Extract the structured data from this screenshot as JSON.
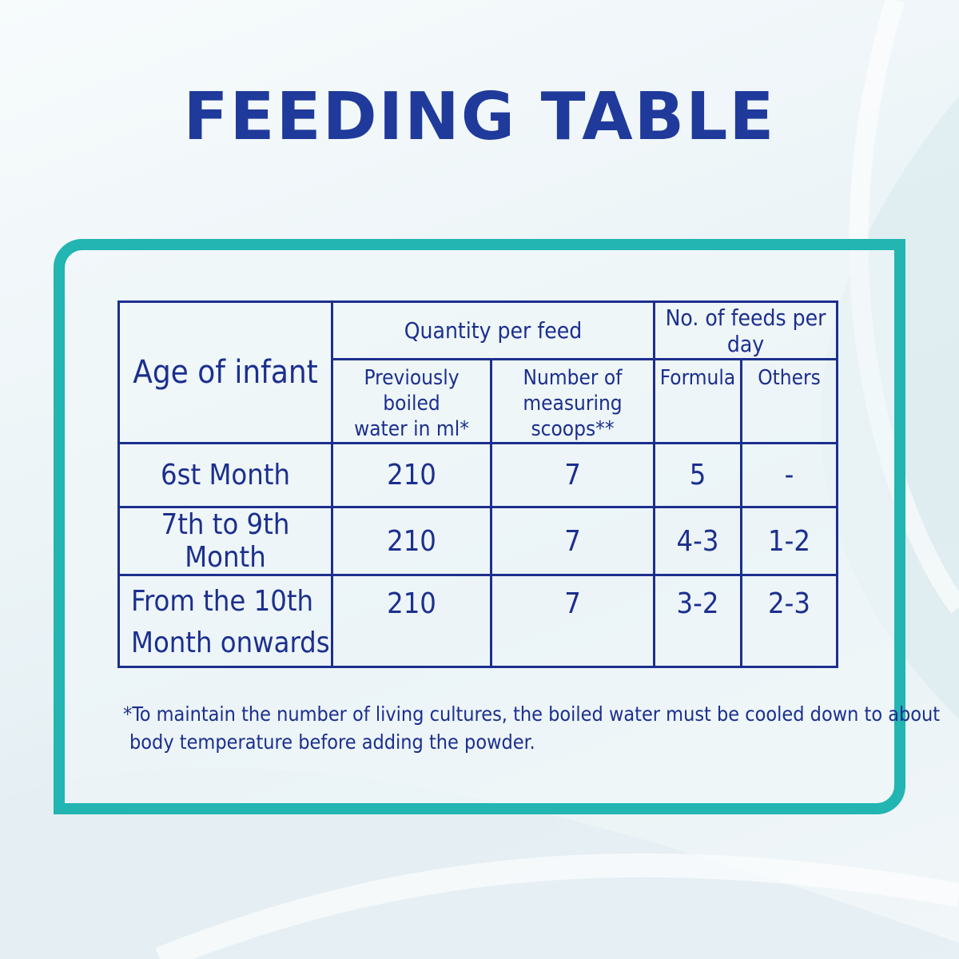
{
  "title": "FEEDING TABLE",
  "colors": {
    "title": "#1f3a9a",
    "table_text": "#1c2f8e",
    "frame_border": "#22b5b2"
  },
  "table": {
    "age_header": "Age of infant",
    "quantity_header": "Quantity per feed",
    "feeds_header": "No. of feeds per day",
    "water_header_line1": "Previously boiled",
    "water_header_line2": "water in ml*",
    "scoops_header_line1": "Number of",
    "scoops_header_line2": "measuring scoops**",
    "formula_header": "Formula",
    "others_header": "Others",
    "rows": [
      {
        "age": "6st Month",
        "water": "210",
        "scoops": "7",
        "formula": "5",
        "others": "-"
      },
      {
        "age": "7th to 9th Month",
        "water": "210",
        "scoops": "7",
        "formula": "4-3",
        "others": "1-2"
      },
      {
        "age_line1": "From the 10th",
        "age_line2": "Month onwards",
        "water": "210",
        "scoops": "7",
        "formula": "3-2",
        "others": "2-3"
      }
    ]
  },
  "footnote": {
    "line1": "*To maintain the number of living cultures, the boiled water must be cooled down to about",
    "line2": "body temperature  before adding the powder."
  }
}
